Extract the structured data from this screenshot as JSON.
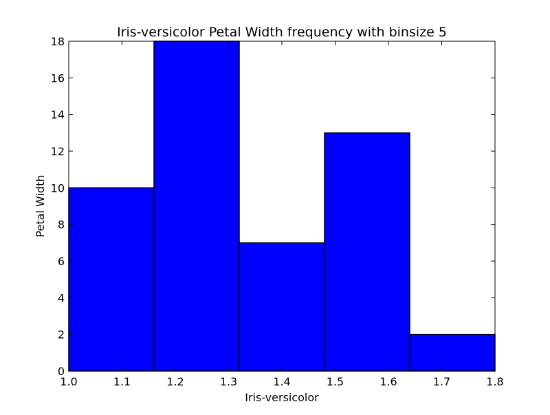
{
  "chart_data": {
    "type": "bar",
    "title": "Iris-versicolor Petal Width frequency with binsize 5",
    "xlabel": "Iris-versicolor",
    "ylabel": "Petal Width",
    "bins": [
      {
        "x0": 1.0,
        "x1": 1.16,
        "count": 10
      },
      {
        "x0": 1.16,
        "x1": 1.32,
        "count": 18
      },
      {
        "x0": 1.32,
        "x1": 1.48,
        "count": 7
      },
      {
        "x0": 1.48,
        "x1": 1.64,
        "count": 13
      },
      {
        "x0": 1.64,
        "x1": 1.8,
        "count": 2
      }
    ],
    "xlim": [
      1.0,
      1.8
    ],
    "ylim": [
      0,
      18
    ],
    "xticks": [
      "1.0",
      "1.1",
      "1.2",
      "1.3",
      "1.4",
      "1.5",
      "1.6",
      "1.7",
      "1.8"
    ],
    "yticks": [
      "0",
      "2",
      "4",
      "6",
      "8",
      "10",
      "12",
      "14",
      "16",
      "18"
    ],
    "grid": false,
    "bar_color": "#0000ff",
    "edge_color": "#000000"
  }
}
